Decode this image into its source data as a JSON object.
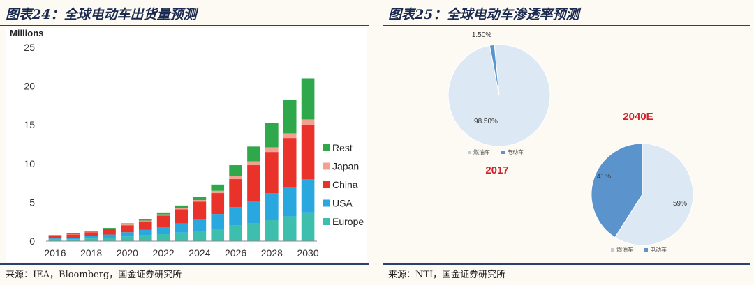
{
  "left": {
    "figure_title": "图表24：全球电动车出货量预测",
    "source": "来源：IEA，Bloomberg，国金证券研究所"
  },
  "right": {
    "figure_title": "图表25：全球电动车渗透率预测",
    "source": "来源：NTI，国金证券研究所"
  },
  "colors": {
    "rest": "#2ea84a",
    "japan": "#f4a090",
    "china": "#e8322a",
    "usa": "#29a7df",
    "europe": "#3ebfae",
    "pie_fuel": "#dde8f5",
    "pie_ev": "#5b94cc",
    "pie_year_label": "#d0202a",
    "rule": "#2e3f73"
  },
  "chart_data": [
    {
      "type": "bar",
      "stacked": true,
      "ylabel": "Millions",
      "ylim": [
        0,
        25
      ],
      "yticks": [
        0,
        5,
        10,
        15,
        20,
        25
      ],
      "categories": [
        "2016",
        "2017",
        "2018",
        "2019",
        "2020",
        "2021",
        "2022",
        "2023",
        "2024",
        "2025",
        "2026",
        "2027",
        "2028",
        "2029",
        "2030"
      ],
      "xtick_labels": [
        "2016",
        "2018",
        "2020",
        "2022",
        "2024",
        "2026",
        "2028",
        "2030"
      ],
      "legend_position": "right",
      "series": [
        {
          "name": "Europe",
          "values": [
            0.2,
            0.25,
            0.35,
            0.45,
            0.6,
            0.75,
            0.9,
            1.1,
            1.3,
            1.6,
            2.0,
            2.3,
            2.7,
            3.2,
            3.7
          ]
        },
        {
          "name": "USA",
          "values": [
            0.15,
            0.2,
            0.3,
            0.4,
            0.55,
            0.7,
            0.9,
            1.2,
            1.5,
            1.9,
            2.4,
            2.9,
            3.5,
            3.8,
            4.3
          ]
        },
        {
          "name": "China",
          "values": [
            0.35,
            0.4,
            0.5,
            0.7,
            0.9,
            1.1,
            1.5,
            1.8,
            2.3,
            2.7,
            3.6,
            4.6,
            5.3,
            6.3,
            7.0
          ]
        },
        {
          "name": "Japan",
          "values": [
            0.05,
            0.05,
            0.05,
            0.05,
            0.1,
            0.1,
            0.15,
            0.15,
            0.2,
            0.3,
            0.4,
            0.5,
            0.6,
            0.6,
            0.7
          ]
        },
        {
          "name": "Rest",
          "values": [
            0.05,
            0.1,
            0.1,
            0.1,
            0.15,
            0.15,
            0.25,
            0.35,
            0.4,
            0.8,
            1.4,
            1.9,
            3.1,
            4.3,
            5.3
          ]
        }
      ]
    },
    {
      "type": "pie",
      "title": "2017",
      "legend": [
        "燃油车",
        "电动车"
      ],
      "slices": [
        {
          "name": "燃油车",
          "value": 98.5,
          "label": "98.50%"
        },
        {
          "name": "电动车",
          "value": 1.5,
          "label": "1.50%"
        }
      ]
    },
    {
      "type": "pie",
      "title": "2040E",
      "legend": [
        "燃油车",
        "电动车"
      ],
      "slices": [
        {
          "name": "燃油车",
          "value": 59,
          "label": "59%"
        },
        {
          "name": "电动车",
          "value": 41,
          "label": "41%"
        }
      ]
    }
  ]
}
